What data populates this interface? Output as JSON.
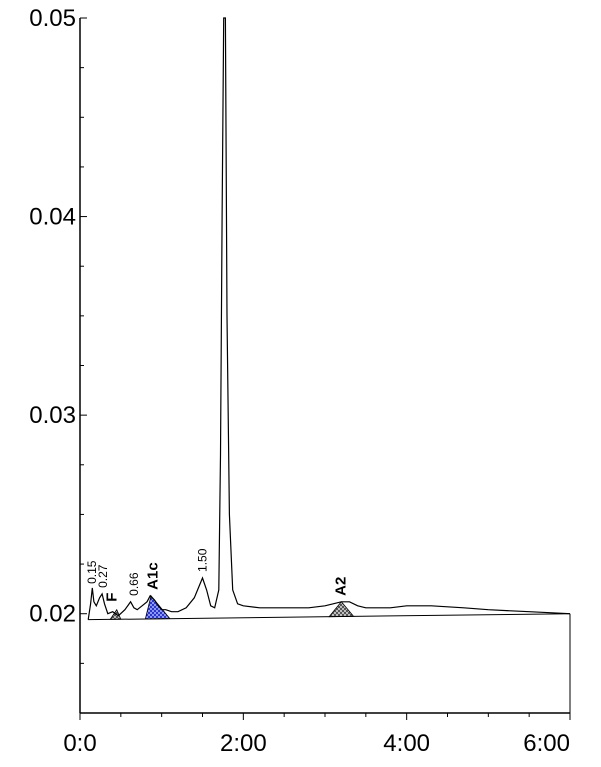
{
  "chart_data": {
    "type": "line",
    "title": "",
    "xlabel": "",
    "ylabel": "",
    "xlim": [
      0,
      6
    ],
    "ylim": [
      0.015,
      0.05
    ],
    "x_ticks": [
      0,
      2,
      4,
      6
    ],
    "x_tick_labels": [
      "0:0",
      "2:00",
      "4:00",
      "6:00"
    ],
    "y_ticks": [
      0.02,
      0.03,
      0.04,
      0.05
    ],
    "y_tick_labels": [
      "0.02",
      "0.03",
      "0.04",
      "0.05"
    ],
    "grid": false,
    "series": [
      {
        "values_x": [
          0.1,
          0.13,
          0.15,
          0.17,
          0.2,
          0.24,
          0.27,
          0.3,
          0.34,
          0.4,
          0.47,
          0.55,
          0.62,
          0.66,
          0.7,
          0.76,
          0.82,
          0.86,
          0.91,
          0.96,
          1.0,
          1.05,
          1.12,
          1.2,
          1.3,
          1.4,
          1.45,
          1.5,
          1.55,
          1.6,
          1.65,
          1.7,
          1.72,
          1.74,
          1.76,
          1.78,
          1.8,
          1.83,
          1.87,
          1.93,
          2.0,
          2.2,
          2.5,
          2.8,
          3.0,
          3.1,
          3.2,
          3.3,
          3.4,
          3.5,
          3.8,
          4.0,
          4.3,
          4.7,
          5.0,
          5.5,
          6.0
        ],
        "values_y": [
          0.0197,
          0.0205,
          0.0213,
          0.0206,
          0.0204,
          0.0208,
          0.021,
          0.0205,
          0.02,
          0.0201,
          0.0199,
          0.0202,
          0.0206,
          0.0203,
          0.0202,
          0.0204,
          0.0206,
          0.0209,
          0.0207,
          0.0204,
          0.0202,
          0.0202,
          0.0201,
          0.0201,
          0.0203,
          0.0208,
          0.0213,
          0.0218,
          0.0212,
          0.0204,
          0.0203,
          0.0212,
          0.028,
          0.04,
          0.05,
          0.05,
          0.035,
          0.025,
          0.0212,
          0.0205,
          0.0204,
          0.0203,
          0.0203,
          0.0203,
          0.0204,
          0.0205,
          0.0206,
          0.0206,
          0.0204,
          0.0203,
          0.0203,
          0.0204,
          0.0204,
          0.0203,
          0.0202,
          0.0201,
          0.02
        ]
      }
    ],
    "baseline": {
      "x": [
        0.1,
        6.0
      ],
      "y": [
        0.0197,
        0.02
      ]
    },
    "shaded_peaks": [
      {
        "x_start": 0.37,
        "x_end": 0.5,
        "peak_x": 0.45,
        "peak_y": 0.0202,
        "color": "#7a7a7a",
        "pattern": "checker"
      },
      {
        "x_start": 0.8,
        "x_end": 1.1,
        "peak_x": 0.87,
        "peak_y": 0.0209,
        "color": "#3b48d6",
        "pattern": "checker"
      },
      {
        "x_start": 3.05,
        "x_end": 3.35,
        "peak_x": 3.2,
        "peak_y": 0.0206,
        "color": "#7a7a7a",
        "pattern": "checker"
      }
    ],
    "annotations": [
      {
        "text": "0.15",
        "x": 0.15,
        "y": 0.0213,
        "rotated": true,
        "bold": false
      },
      {
        "text": "0.27",
        "x": 0.28,
        "y": 0.0211,
        "rotated": true,
        "bold": false
      },
      {
        "text": "F",
        "x": 0.4,
        "y": 0.0204,
        "rotated": true,
        "bold": true
      },
      {
        "text": "0.66",
        "x": 0.66,
        "y": 0.0207,
        "rotated": true,
        "bold": false
      },
      {
        "text": "A1c",
        "x": 0.9,
        "y": 0.021,
        "rotated": true,
        "bold": true
      },
      {
        "text": "1.50",
        "x": 1.5,
        "y": 0.0219,
        "rotated": true,
        "bold": false
      },
      {
        "text": "A2",
        "x": 3.2,
        "y": 0.0207,
        "rotated": true,
        "bold": true
      }
    ]
  }
}
